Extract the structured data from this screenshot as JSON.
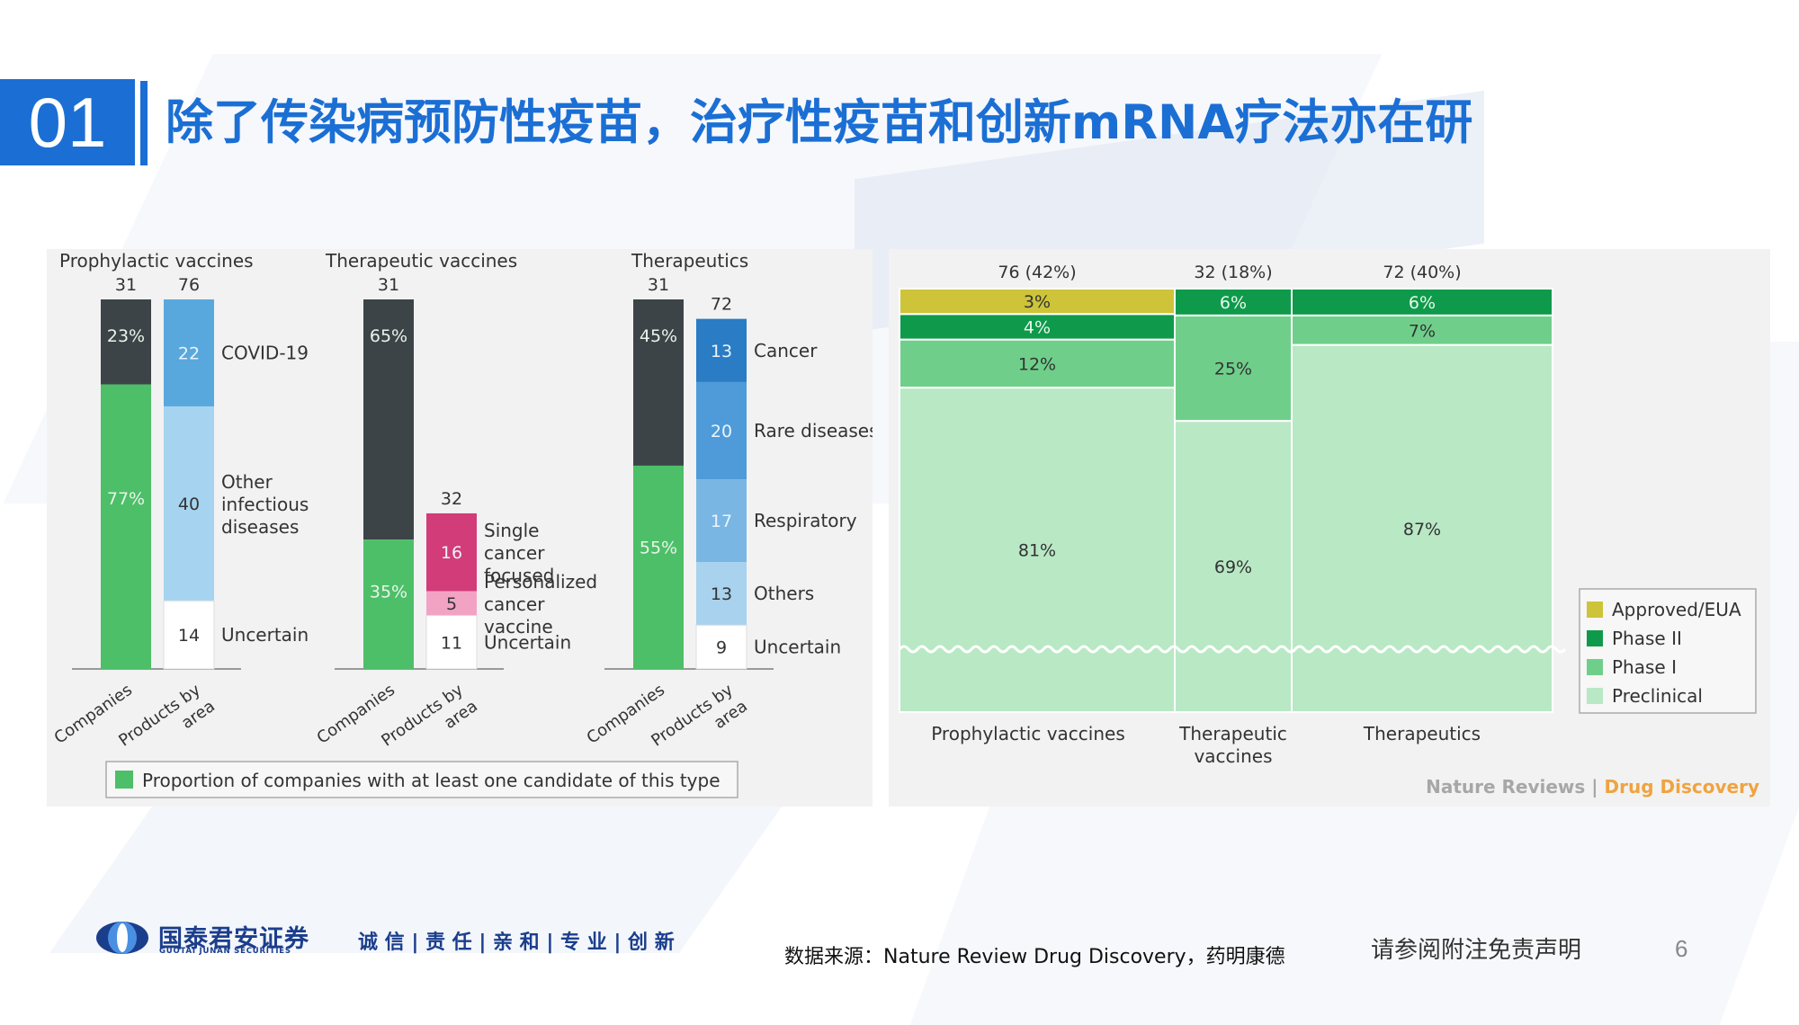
{
  "header": {
    "number": "01",
    "title": "除了传染病预防性疫苗，治疗性疫苗和创新mRNA疗法亦在研"
  },
  "chart_data": [
    {
      "type": "bar",
      "groups": [
        {
          "name": "Prophylactic vaccines",
          "companies": {
            "total": 31,
            "segments": [
              {
                "label": "23%",
                "value": 23
              },
              {
                "label": "77%",
                "value": 77
              }
            ]
          },
          "products": {
            "total": 76,
            "segments": [
              {
                "value": 22,
                "label": "COVID-19"
              },
              {
                "value": 40,
                "label": "Other infectious diseases"
              },
              {
                "value": 14,
                "label": "Uncertain"
              }
            ]
          }
        },
        {
          "name": "Therapeutic vaccines",
          "companies": {
            "total": 31,
            "segments": [
              {
                "label": "65%",
                "value": 65
              },
              {
                "label": "35%",
                "value": 35
              }
            ]
          },
          "products": {
            "total": 32,
            "segments": [
              {
                "value": 16,
                "label": "Single cancer focused"
              },
              {
                "value": 5,
                "label": "Personalized cancer vaccine"
              },
              {
                "value": 11,
                "label": "Uncertain"
              }
            ]
          }
        },
        {
          "name": "Therapeutics",
          "companies": {
            "total": 31,
            "segments": [
              {
                "label": "45%",
                "value": 45
              },
              {
                "label": "55%",
                "value": 55
              }
            ]
          },
          "products": {
            "total": 72,
            "segments": [
              {
                "value": 13,
                "label": "Cancer"
              },
              {
                "value": 20,
                "label": "Rare diseases"
              },
              {
                "value": 17,
                "label": "Respiratory"
              },
              {
                "value": 13,
                "label": "Others"
              },
              {
                "value": 9,
                "label": "Uncertain"
              }
            ]
          }
        }
      ],
      "x_tick_labels": [
        "Companies",
        "Products by area"
      ],
      "legend": "Proportion of companies with at least one candidate of this type"
    },
    {
      "type": "bar",
      "subtype": "mosaic",
      "columns": [
        {
          "name": "Prophylactic vaccines",
          "header": "76 (42%)",
          "share": 42,
          "stages": [
            {
              "stage": "Approved/EUA",
              "value": 3
            },
            {
              "stage": "Phase II",
              "value": 4
            },
            {
              "stage": "Phase I",
              "value": 12
            },
            {
              "stage": "Preclinical",
              "value": 81
            }
          ]
        },
        {
          "name": "Therapeutic vaccines",
          "header": "32 (18%)",
          "share": 18,
          "stages": [
            {
              "stage": "Phase II",
              "value": 6
            },
            {
              "stage": "Phase I",
              "value": 25
            },
            {
              "stage": "Preclinical",
              "value": 69
            }
          ]
        },
        {
          "name": "Therapeutics",
          "header": "72 (40%)",
          "share": 40,
          "stages": [
            {
              "stage": "Phase II",
              "value": 6
            },
            {
              "stage": "Phase I",
              "value": 7
            },
            {
              "stage": "Preclinical",
              "value": 87
            }
          ]
        }
      ],
      "legend": [
        "Approved/EUA",
        "Phase II",
        "Phase I",
        "Preclinical"
      ],
      "credit": {
        "journal": "Nature Reviews",
        "section": "Drug Discovery"
      }
    }
  ],
  "footer": {
    "logo_cn": "国泰君安证券",
    "logo_en": "GUOTAI JUNAN SECURITIES",
    "slogan": "诚 信 | 责 任 | 亲 和 | 专 业 | 创 新",
    "source": "数据来源：Nature Review Drug Discovery，药明康德",
    "disclaimer": "请参阅附注免责声明",
    "page": "6"
  },
  "colors": {
    "brand_blue": "#1b6fd4",
    "companies_dark": "#3c4448",
    "companies_green": "#4dbf68",
    "approved": "#cdc43a",
    "phase2": "#0e9a4a",
    "phase1": "#6fcf8a",
    "preclinical": "#b9e8c5",
    "credit_orange": "#f0a340"
  }
}
